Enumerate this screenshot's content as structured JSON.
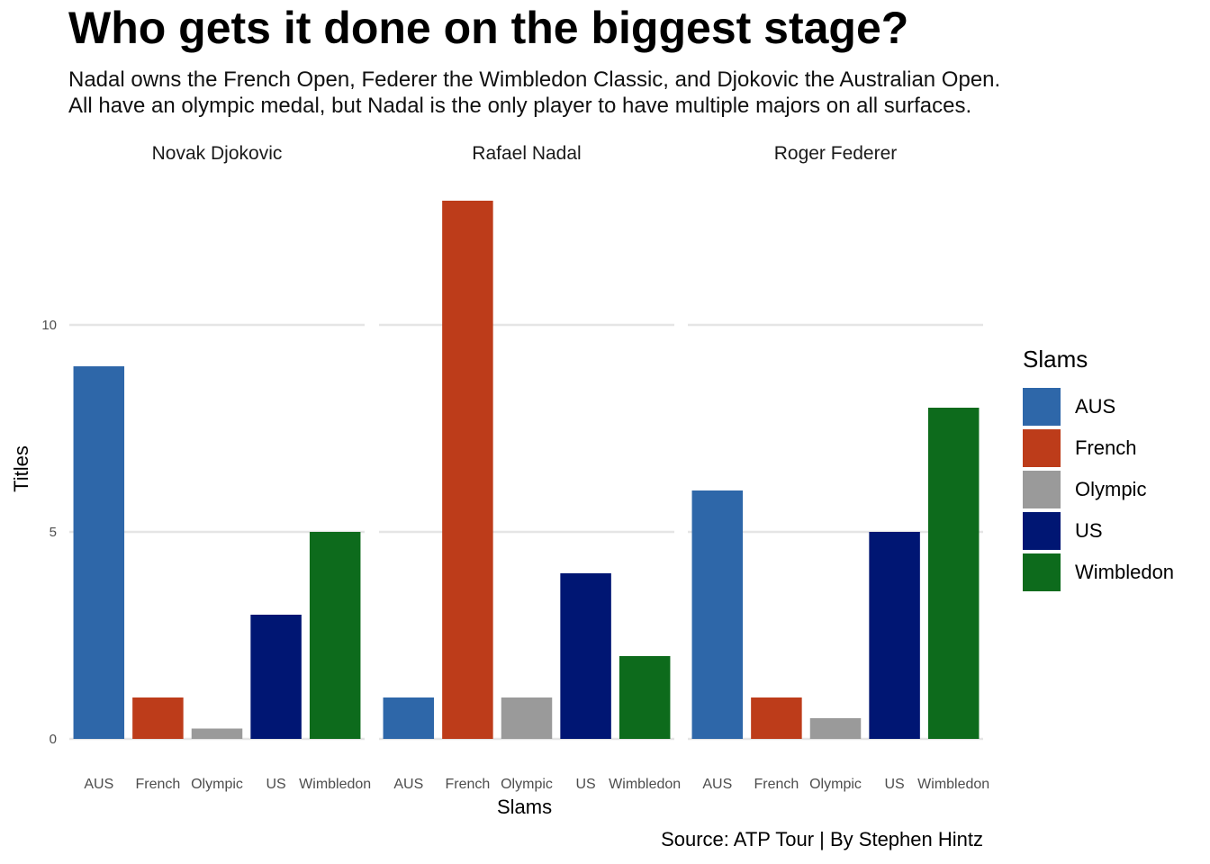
{
  "title": "Who gets it done on the biggest stage?",
  "subtitle": {
    "line1": "Nadal owns the French Open, Federer the Wimbledon Classic, and Djokovic the Australian Open.",
    "line2": "All have an olympic medal, but Nadal is the only player to have multiple majors on all surfaces."
  },
  "caption": "Source: ATP Tour | By Stephen Hintz",
  "chart_data": {
    "type": "bar",
    "facets": [
      "Novak Djokovic",
      "Rafael Nadal",
      "Roger Federer"
    ],
    "categories": [
      "AUS",
      "French",
      "Olympic",
      "US",
      "Wimbledon"
    ],
    "colors": {
      "AUS": "#2E67A9",
      "French": "#BD3C1A",
      "Olympic": "#9A9A9A",
      "US": "#001673",
      "Wimbledon": "#0D6B1C"
    },
    "values": {
      "Novak Djokovic": [
        9,
        1,
        0.25,
        3,
        5
      ],
      "Rafael Nadal": [
        1,
        13,
        1,
        4,
        2
      ],
      "Roger Federer": [
        6,
        1,
        0.5,
        5,
        8
      ]
    },
    "xlabel": "Slams",
    "ylabel": "Titles",
    "yticks": [
      0,
      5,
      10
    ],
    "ylim": [
      0,
      13
    ],
    "grid": true,
    "legend": {
      "title": "Slams",
      "position": "right",
      "items": [
        "AUS",
        "French",
        "Olympic",
        "US",
        "Wimbledon"
      ]
    }
  }
}
